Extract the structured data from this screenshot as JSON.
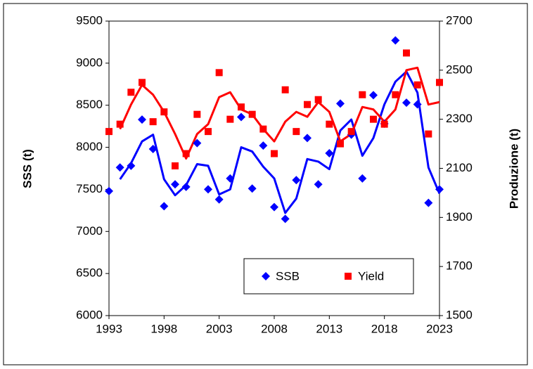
{
  "chart_data": {
    "type": "scatter",
    "x": [
      1993,
      1994,
      1995,
      1996,
      1997,
      1998,
      1999,
      2000,
      2001,
      2002,
      2003,
      2004,
      2005,
      2006,
      2007,
      2008,
      2009,
      2010,
      2011,
      2012,
      2013,
      2014,
      2015,
      2016,
      2017,
      2018,
      2019,
      2020,
      2021,
      2022,
      2023
    ],
    "xlim": [
      1993,
      2023
    ],
    "xticks": [
      1993,
      1998,
      2003,
      2008,
      2013,
      2018,
      2023
    ],
    "ylim": [
      6000,
      9500
    ],
    "yticks": [
      6000,
      6500,
      7000,
      7500,
      8000,
      8500,
      9000,
      9500
    ],
    "y2lim": [
      1500,
      2700
    ],
    "y2ticks": [
      1500,
      1700,
      1900,
      2100,
      2300,
      2500,
      2700
    ],
    "ylabel": "SSS (t)",
    "y2label": "Produzione (t)",
    "legend": "bottom-right",
    "series": [
      {
        "name": "SSB",
        "color": "#0000ff",
        "mode": "markers",
        "marker": "diamond",
        "values": [
          7480,
          7760,
          7780,
          8330,
          7980,
          7300,
          7560,
          7530,
          8050,
          7500,
          7380,
          7630,
          8360,
          7510,
          8020,
          7290,
          7150,
          7610,
          8110,
          7560,
          7930,
          8520,
          8150,
          7630,
          8620,
          8280,
          9270,
          8530,
          8510,
          7340,
          7500
        ]
      },
      {
        "name": "Yield",
        "color": "#ff0000",
        "mode": "markers",
        "marker": "square",
        "axis": "y2",
        "values": [
          2250,
          2280,
          2410,
          2450,
          2290,
          2330,
          2110,
          2160,
          2320,
          2250,
          2490,
          2300,
          2350,
          2320,
          2260,
          2160,
          2420,
          2250,
          2360,
          2380,
          2280,
          2200,
          2250,
          2400,
          2300,
          2280,
          2400,
          2570,
          2440,
          2240,
          2450
        ]
      },
      {
        "color": "#0000ff",
        "mode": "line",
        "values": [
          null,
          7620,
          7810,
          8070,
          8150,
          7620,
          7430,
          7550,
          7800,
          7780,
          7440,
          7500,
          8000,
          7950,
          7770,
          7630,
          7220,
          7390,
          7860,
          7830,
          7740,
          8200,
          8330,
          7900,
          8110,
          8510,
          8780,
          8900,
          8650,
          7760,
          7450
        ]
      },
      {
        "color": "#ff0000",
        "mode": "line",
        "axis": "y2",
        "values": [
          null,
          2260,
          2360,
          2440,
          2400,
          2330,
          2240,
          2140,
          2240,
          2280,
          2390,
          2410,
          2340,
          2320,
          2260,
          2210,
          2290,
          2330,
          2310,
          2370,
          2330,
          2210,
          2240,
          2350,
          2340,
          2290,
          2340,
          2500,
          2510,
          2360,
          2370
        ]
      }
    ]
  }
}
